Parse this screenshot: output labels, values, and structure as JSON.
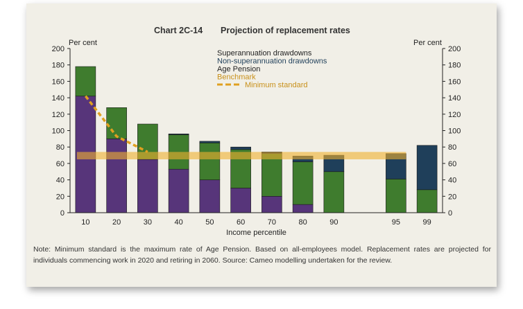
{
  "chart_data": {
    "type": "bar",
    "stacked": true,
    "title_number": "Chart 2C-14",
    "title": "Projection of replacement rates",
    "xlabel": "Income percentile",
    "ylabel_left": "Per cent",
    "ylabel_right": "Per cent",
    "ylim": [
      0,
      200
    ],
    "yticks": [
      0,
      20,
      40,
      60,
      80,
      100,
      120,
      140,
      160,
      180,
      200
    ],
    "categories": [
      "10",
      "20",
      "30",
      "40",
      "50",
      "60",
      "70",
      "80",
      "90",
      "",
      "95",
      "99"
    ],
    "series": [
      {
        "name": "Age Pension",
        "color": "#57357a",
        "values": [
          142,
          90,
          65,
          53,
          40,
          30,
          20,
          10,
          0,
          0,
          0,
          0
        ]
      },
      {
        "name": "Superannuation drawdowns",
        "color": "#3f7c2e",
        "values": [
          36,
          38,
          43,
          42,
          45,
          47,
          52,
          52,
          50,
          0,
          41,
          28
        ]
      },
      {
        "name": "Non-superannuation  drawdowns",
        "color": "#1f3f5a",
        "values": [
          0,
          0,
          0,
          1,
          2,
          3,
          2,
          7,
          20,
          0,
          31,
          54
        ]
      }
    ],
    "benchmark": {
      "name": "Benchmark",
      "range": [
        65,
        74
      ],
      "color": "#f0b030"
    },
    "minimum_standard": {
      "name": "Minimum standard",
      "color": "#e0a020",
      "x": [
        "10",
        "20",
        "30"
      ],
      "values": [
        142,
        93,
        74
      ]
    },
    "legend_order": [
      "Superannuation drawdowns",
      "Non-superannuation  drawdowns",
      "Age Pension",
      "Benchmark",
      "Minimum standard"
    ],
    "legend_placement": "top-center",
    "grid": false
  },
  "note": "Note: Minimum standard is the maximum rate of Age Pension. Based on all-employees model. Replacement rates are projected for individuals commencing work in 2020 and retiring in 2060. Source: Cameo modelling undertaken for the review."
}
